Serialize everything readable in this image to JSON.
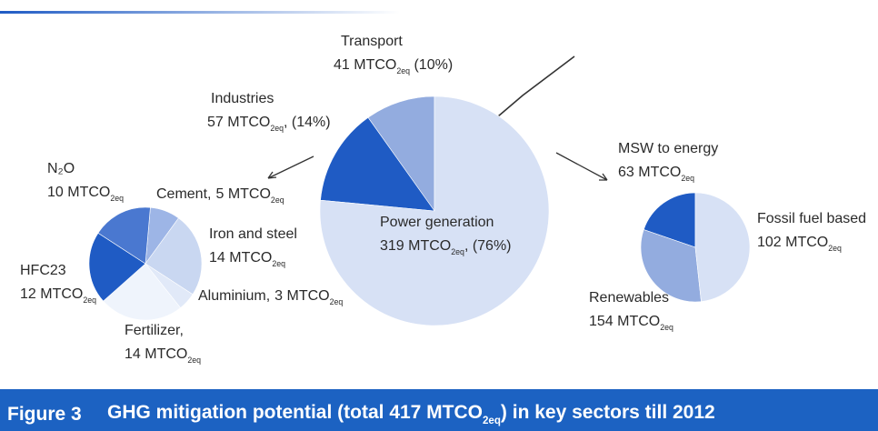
{
  "chart_data": [
    {
      "type": "pie",
      "categories": [
        "Transport",
        "Industries",
        "Power generation"
      ],
      "values": [
        41,
        57,
        319
      ],
      "value_labels": [
        "41 MTCO2eq (10%)",
        "57 MTCO2eq, (14%)",
        "319 MTCO2eq, (76%)"
      ],
      "colors": [
        "#93acdf",
        "#1f5bc4",
        "#d7e1f5"
      ]
    },
    {
      "type": "pie",
      "categories": [
        "Cement,",
        "Iron and steel",
        "Aluminium,",
        "Fertilizer,",
        "HFC23",
        "N₂O"
      ],
      "values": [
        5,
        14,
        3,
        14,
        12,
        10
      ],
      "value_labels": [
        "5 MTCO2eq",
        "14 MTCO2eq",
        "3 MTCO2eq",
        "14 MTCO2eq",
        "12 MTCO2eq",
        "10 MTCO2eq"
      ],
      "colors": [
        "#9db5e6",
        "#c9d7f1",
        "#e1e9f8",
        "#eff4fc",
        "#1f5bc4",
        "#4a78d0"
      ]
    },
    {
      "type": "pie",
      "categories": [
        "MSW to energy",
        "Fossil fuel based",
        "Renewables"
      ],
      "values": [
        63,
        102,
        154
      ],
      "value_labels": [
        "63 MTCO2eq",
        "102 MTCO2eq",
        "154 MTCO2eq"
      ],
      "colors": [
        "#1f5bc4",
        "#93acdf",
        "#d7e1f5"
      ]
    }
  ],
  "caption": {
    "label": "Figure 3",
    "text": "GHG mitigation potential (total 417 MTCO2eq) in key sectors till 2012"
  }
}
